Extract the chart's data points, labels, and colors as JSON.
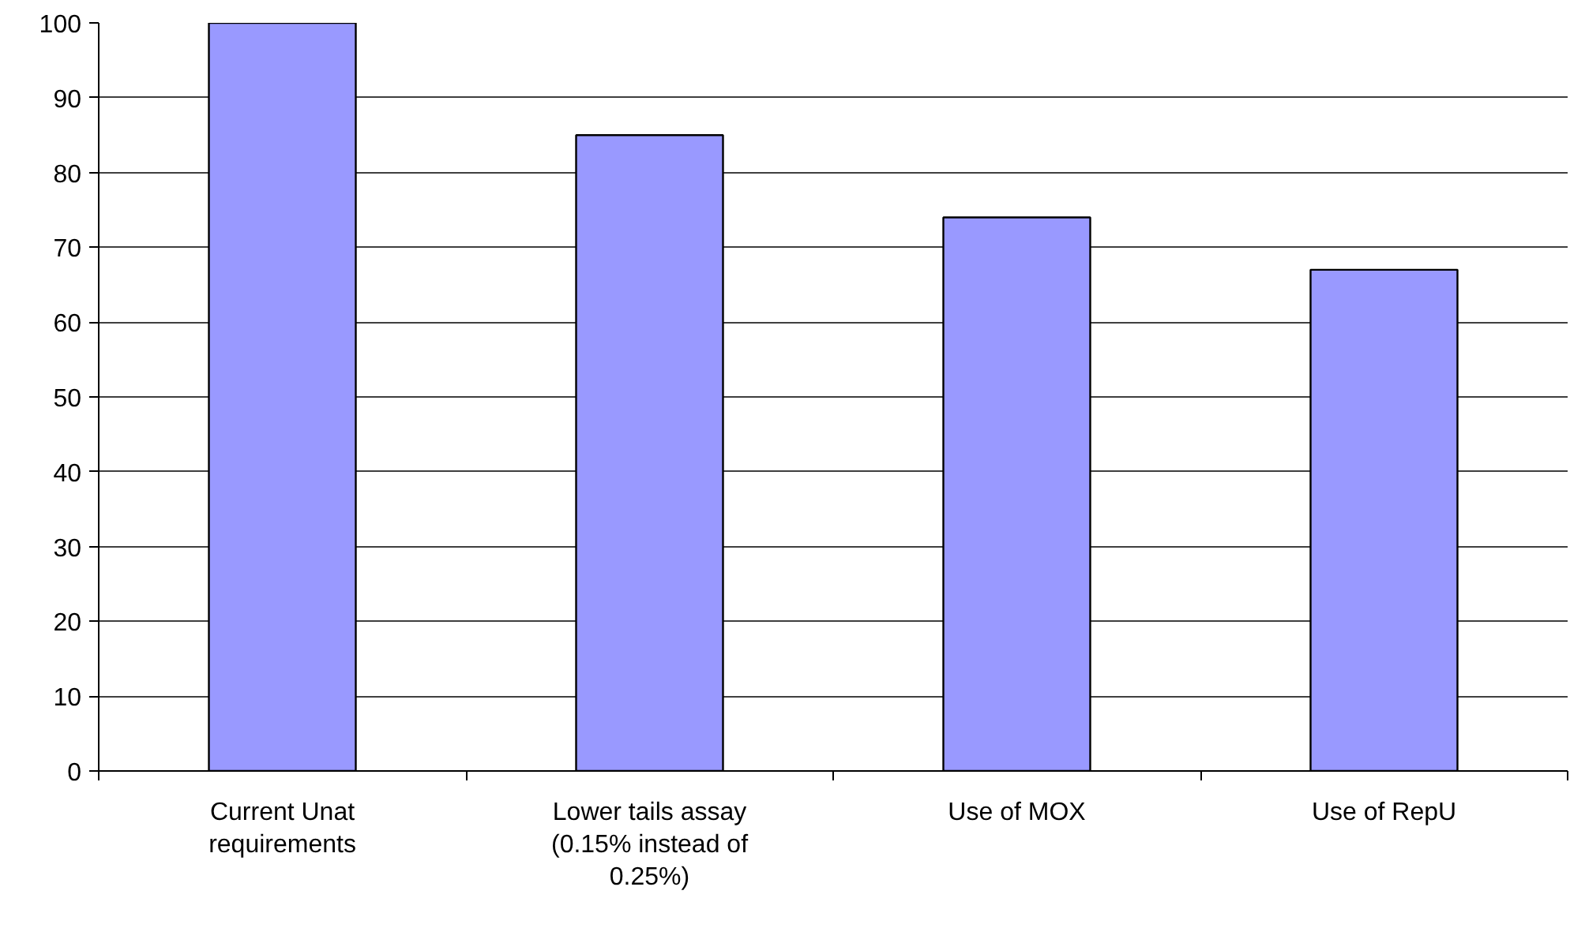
{
  "chart_data": {
    "type": "bar",
    "categories": [
      "Current Unat requirements",
      "Lower tails assay (0.15% instead of 0.25%)",
      "Use of MOX",
      "Use of RepU"
    ],
    "values": [
      100,
      85,
      74,
      67
    ],
    "color": "#9999ff",
    "ylim": [
      0,
      100
    ],
    "yticks": [
      0,
      10,
      20,
      30,
      40,
      50,
      60,
      70,
      80,
      90,
      100
    ],
    "grid": "y"
  }
}
